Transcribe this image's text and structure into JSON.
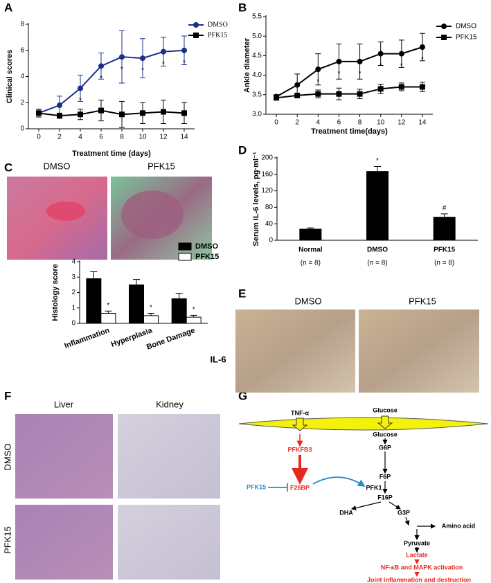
{
  "panels": [
    "A",
    "B",
    "C",
    "D",
    "E",
    "F",
    "G"
  ],
  "panel_c": {
    "columns": [
      "DMSO",
      "PFK15"
    ]
  },
  "panel_e": {
    "columns": [
      "DMSO",
      "PFK15"
    ],
    "row": "IL-6"
  },
  "panel_f": {
    "columns": [
      "Liver",
      "Kidney"
    ],
    "rows": [
      "DMSO",
      "PFK15"
    ]
  },
  "diagram": {
    "nodes": [
      "TNF-α",
      "Glucose",
      "Glucose",
      "G6P",
      "F6P",
      "PFKFB3",
      "PFK15",
      "F26BP",
      "PFK1",
      "F16P",
      "DHA",
      "G3P",
      "Amino acid",
      "Pyruvate",
      "Lactate",
      "NF-κB and MAPK activation",
      "Joint inflammation and destruction"
    ]
  },
  "chart_data": [
    {
      "type": "line",
      "x_label": "Treatment time (days)",
      "y_label": "Clinical scores",
      "x": [
        0,
        2,
        4,
        6,
        8,
        10,
        12,
        14
      ],
      "xlim": [
        -1,
        15
      ],
      "xticks": [
        0,
        2,
        4,
        6,
        8,
        10,
        12,
        14
      ],
      "ylim": [
        0,
        8
      ],
      "yticks": [
        0,
        2,
        4,
        6,
        8
      ],
      "legend": "upper right",
      "series": [
        {
          "name": "DMSO",
          "color": "#1a2f8a",
          "marker": "circle",
          "values": [
            1.2,
            1.8,
            3.1,
            4.8,
            5.5,
            5.4,
            5.9,
            6.0
          ],
          "errors": [
            0.3,
            0.7,
            1.0,
            1.0,
            2.0,
            1.5,
            1.1,
            1.1
          ],
          "significance": [
            null,
            null,
            "*",
            "*",
            "*",
            "*",
            "*",
            "*"
          ]
        },
        {
          "name": "PFK15",
          "color": "#000000",
          "marker": "square",
          "values": [
            1.2,
            1.0,
            1.1,
            1.4,
            1.1,
            1.2,
            1.3,
            1.2
          ],
          "errors": [
            0.3,
            0.2,
            0.4,
            0.8,
            1.0,
            0.8,
            0.9,
            0.8
          ]
        }
      ]
    },
    {
      "type": "line",
      "x_label": "Treatment time(days)",
      "y_label": "Ankle diameter",
      "x": [
        0,
        2,
        4,
        6,
        8,
        10,
        12,
        14
      ],
      "xlim": [
        -1,
        15
      ],
      "xticks": [
        0,
        2,
        4,
        6,
        8,
        10,
        12,
        14
      ],
      "ylim": [
        3,
        5.5
      ],
      "yticks": [
        {
          "value": 3,
          "label": "3.0"
        },
        3.5,
        {
          "value": 4,
          "label": "4.0"
        },
        4.5,
        {
          "value": 5,
          "label": "5.0"
        },
        5.5
      ],
      "legend": "outside right",
      "series": [
        {
          "name": "DMSO",
          "color": "#000000",
          "marker": "circle",
          "values": [
            3.45,
            3.75,
            4.15,
            4.35,
            4.35,
            4.55,
            4.55,
            4.72
          ],
          "errors": [
            0.05,
            0.28,
            0.4,
            0.45,
            0.45,
            0.3,
            0.35,
            0.35
          ],
          "significance": [
            null,
            null,
            "*",
            "*",
            "*",
            "*",
            "*",
            "*"
          ]
        },
        {
          "name": "PFK15",
          "color": "#000000",
          "marker": "square",
          "values": [
            3.42,
            3.48,
            3.52,
            3.52,
            3.52,
            3.65,
            3.7,
            3.7
          ],
          "errors": [
            0.05,
            0.05,
            0.1,
            0.15,
            0.12,
            0.12,
            0.1,
            0.12
          ]
        }
      ]
    },
    {
      "type": "bar",
      "y_label": "Histology score",
      "categories": [
        "Inflammation",
        "Hyperplasia",
        "Bone Damage"
      ],
      "ylim": [
        0,
        4
      ],
      "yticks": [
        0,
        1,
        2,
        3,
        4
      ],
      "legend": "upper right",
      "series": [
        {
          "name": "DMSO",
          "color": "#000000",
          "values": [
            2.9,
            2.5,
            1.6
          ],
          "errors": [
            0.45,
            0.35,
            0.35
          ]
        },
        {
          "name": "PFK15",
          "color": "#ffffff",
          "values": [
            0.65,
            0.5,
            0.4
          ],
          "errors": [
            0.15,
            0.15,
            0.12
          ],
          "significance": [
            "*",
            "*",
            "*"
          ]
        }
      ]
    },
    {
      "type": "bar",
      "y_label": "Serum IL-6 levels, pg·ml⁻¹",
      "categories": [
        "Normal",
        "DMSO",
        "PFK15"
      ],
      "category_notes": [
        "(n = 8)",
        "(n = 8)",
        "(n = 8)"
      ],
      "ylim": [
        0,
        200
      ],
      "yticks": [
        0,
        40,
        80,
        120,
        160,
        200
      ],
      "series": [
        {
          "color": "#000000",
          "values": [
            27,
            167,
            56
          ],
          "errors": [
            3,
            12,
            8
          ],
          "significance": [
            null,
            "*",
            "#"
          ]
        }
      ]
    }
  ]
}
